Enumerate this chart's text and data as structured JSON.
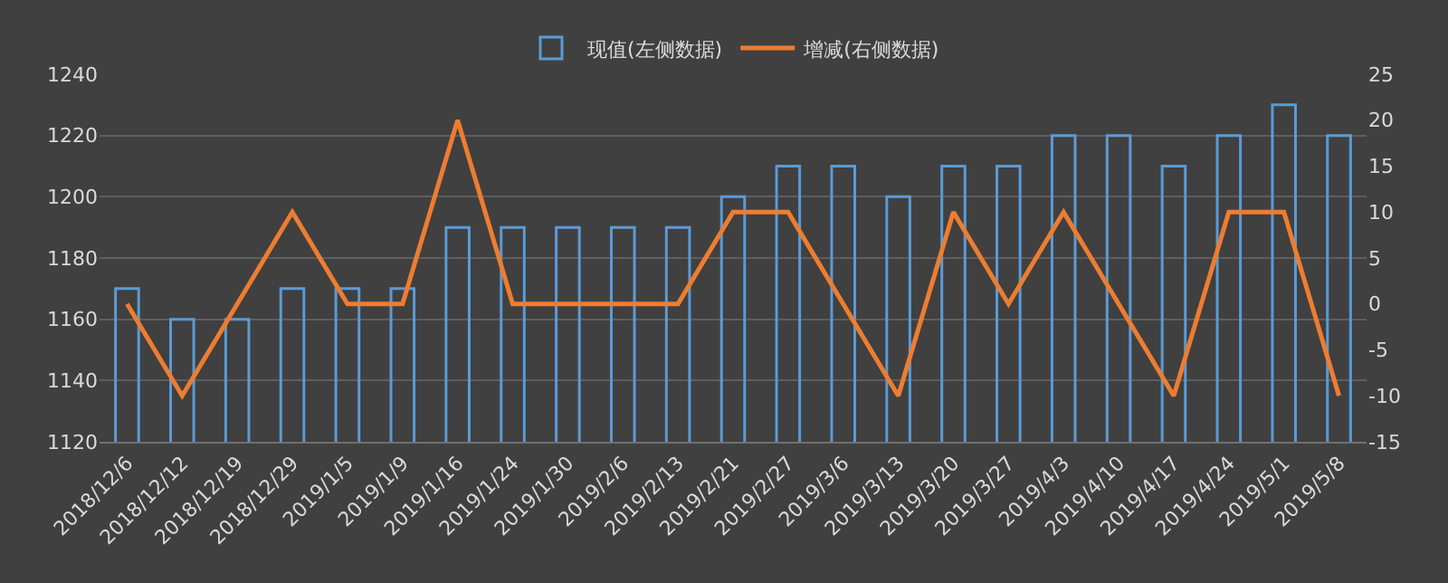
{
  "chart_data": {
    "type": "bar",
    "categories": [
      "2018/12/6",
      "2018/12/12",
      "2018/12/19",
      "2018/12/29",
      "2019/1/5",
      "2019/1/9",
      "2019/1/16",
      "2019/1/24",
      "2019/1/30",
      "2019/2/6",
      "2019/2/13",
      "2019/2/21",
      "2019/2/27",
      "2019/3/6",
      "2019/3/13",
      "2019/3/20",
      "2019/3/27",
      "2019/4/3",
      "2019/4/10",
      "2019/4/17",
      "2019/4/24",
      "2019/5/1",
      "2019/5/8"
    ],
    "series": [
      {
        "name": "现值(左侧数据)",
        "color": "#5b9bd5",
        "values": [
          1170,
          1160,
          1160,
          1170,
          1170,
          1170,
          1190,
          1190,
          1190,
          1190,
          1190,
          1200,
          1210,
          1210,
          1200,
          1210,
          1210,
          1220,
          1220,
          1210,
          1220,
          1230,
          1220
        ]
      },
      {
        "name": "增减(右侧数据)",
        "type": "line",
        "axis": "y2",
        "color": "#ed7d31",
        "values": [
          0,
          -10,
          0,
          10,
          0,
          0,
          20,
          0,
          0,
          0,
          0,
          10,
          10,
          0,
          -10,
          10,
          0,
          10,
          0,
          -10,
          10,
          10,
          -10
        ]
      }
    ],
    "ylim": [
      1120,
      1240
    ],
    "yticks": [
      1120,
      1140,
      1160,
      1180,
      1200,
      1220,
      1240
    ],
    "y2lim": [
      -15,
      25
    ],
    "y2ticks": [
      -15,
      -10,
      -5,
      0,
      5,
      10,
      15,
      20,
      25
    ],
    "grid": "y",
    "legend": "top",
    "marker": "none",
    "line_style": "solid"
  }
}
